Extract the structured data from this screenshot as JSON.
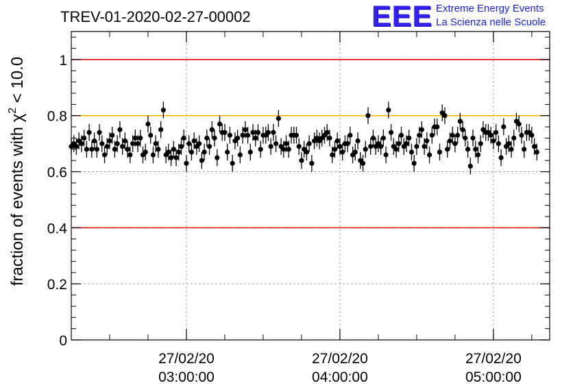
{
  "header": {
    "title": "TREV-01-2020-02-27-00002",
    "logo_mark": "EEE",
    "logo_line1": "Extreme Energy Events",
    "logo_line2": "La Scienza nelle Scuole"
  },
  "colors": {
    "logo": "#2a1fe6",
    "ref_red": "#e00000",
    "ref_orange": "#ffb000",
    "points": "#000000",
    "grid": "#a0a0a0"
  },
  "chart_data": {
    "type": "scatter",
    "title": "TREV-01-2020-02-27-00002",
    "xlabel": "",
    "ylabel": "fraction of events with χ² < 10.0",
    "ylabel_parts": {
      "pre": "fraction of events with ",
      "sym": "χ",
      "sup": "2",
      "post": " < 10.0"
    },
    "x_axis": {
      "type": "time",
      "start": "27/02/20 02:15:00",
      "end": "27/02/20 05:22:00"
    },
    "ylim": [
      0,
      1.1
    ],
    "yticks": [
      0,
      0.2,
      0.4,
      0.6,
      0.8,
      1
    ],
    "ytick_labels": [
      "0",
      "0.2",
      "0.4",
      "0.6",
      "0.8",
      "1"
    ],
    "xticks": [
      {
        "time": "27/02/20 03:00:00",
        "date": "27/02/20",
        "clock": "03:00:00"
      },
      {
        "time": "27/02/20 04:00:00",
        "date": "27/02/20",
        "clock": "04:00:00"
      },
      {
        "time": "27/02/20 05:00:00",
        "date": "27/02/20",
        "clock": "05:00:00"
      }
    ],
    "grid": true,
    "reference_lines": [
      {
        "y": 1.0,
        "color": "#e00000"
      },
      {
        "y": 0.8,
        "color": "#ffb000"
      },
      {
        "y": 0.4,
        "color": "#e00000"
      }
    ],
    "series": [
      {
        "error": 0.03,
        "points": [
          {
            "x": "27/02/20 02:15:00",
            "y": 0.69
          },
          {
            "x": "27/02/20 02:16:00",
            "y": 0.7
          },
          {
            "x": "27/02/20 02:17:00",
            "y": 0.69
          },
          {
            "x": "27/02/20 02:18:00",
            "y": 0.71
          },
          {
            "x": "27/02/20 02:19:00",
            "y": 0.7
          },
          {
            "x": "27/02/20 02:20:00",
            "y": 0.72
          },
          {
            "x": "27/02/20 02:21:00",
            "y": 0.68
          },
          {
            "x": "27/02/20 02:22:00",
            "y": 0.74
          },
          {
            "x": "27/02/20 02:23:00",
            "y": 0.68
          },
          {
            "x": "27/02/20 02:24:00",
            "y": 0.71
          },
          {
            "x": "27/02/20 02:25:00",
            "y": 0.68
          },
          {
            "x": "27/02/20 02:26:00",
            "y": 0.74
          },
          {
            "x": "27/02/20 02:27:00",
            "y": 0.7
          },
          {
            "x": "27/02/20 02:28:00",
            "y": 0.66
          },
          {
            "x": "27/02/20 02:29:00",
            "y": 0.69
          },
          {
            "x": "27/02/20 02:30:00",
            "y": 0.71
          },
          {
            "x": "27/02/20 02:31:00",
            "y": 0.73
          },
          {
            "x": "27/02/20 02:32:00",
            "y": 0.68
          },
          {
            "x": "27/02/20 02:33:00",
            "y": 0.7
          },
          {
            "x": "27/02/20 02:34:00",
            "y": 0.75
          },
          {
            "x": "27/02/20 02:35:00",
            "y": 0.69
          },
          {
            "x": "27/02/20 02:36:00",
            "y": 0.71
          },
          {
            "x": "27/02/20 02:37:00",
            "y": 0.68
          },
          {
            "x": "27/02/20 02:38:00",
            "y": 0.66
          },
          {
            "x": "27/02/20 02:39:00",
            "y": 0.7
          },
          {
            "x": "27/02/20 02:40:00",
            "y": 0.72
          },
          {
            "x": "27/02/20 02:41:00",
            "y": 0.7
          },
          {
            "x": "27/02/20 02:42:00",
            "y": 0.72
          },
          {
            "x": "27/02/20 02:43:00",
            "y": 0.66
          },
          {
            "x": "27/02/20 02:44:00",
            "y": 0.67
          },
          {
            "x": "27/02/20 02:45:00",
            "y": 0.77
          },
          {
            "x": "27/02/20 02:46:00",
            "y": 0.73
          },
          {
            "x": "27/02/20 02:47:00",
            "y": 0.66
          },
          {
            "x": "27/02/20 02:48:00",
            "y": 0.7
          },
          {
            "x": "27/02/20 02:49:00",
            "y": 0.68
          },
          {
            "x": "27/02/20 02:50:00",
            "y": 0.75
          },
          {
            "x": "27/02/20 02:51:00",
            "y": 0.82
          },
          {
            "x": "27/02/20 02:52:00",
            "y": 0.66
          },
          {
            "x": "27/02/20 02:53:00",
            "y": 0.67
          },
          {
            "x": "27/02/20 02:54:00",
            "y": 0.65
          },
          {
            "x": "27/02/20 02:55:00",
            "y": 0.68
          },
          {
            "x": "27/02/20 02:56:00",
            "y": 0.65
          },
          {
            "x": "27/02/20 02:57:00",
            "y": 0.67
          },
          {
            "x": "27/02/20 02:58:00",
            "y": 0.69
          },
          {
            "x": "27/02/20 02:59:00",
            "y": 0.72
          },
          {
            "x": "27/02/20 03:00:00",
            "y": 0.63
          },
          {
            "x": "27/02/20 03:01:00",
            "y": 0.7
          },
          {
            "x": "27/02/20 03:02:00",
            "y": 0.67
          },
          {
            "x": "27/02/20 03:03:00",
            "y": 0.71
          },
          {
            "x": "27/02/20 03:04:00",
            "y": 0.69
          },
          {
            "x": "27/02/20 03:05:00",
            "y": 0.7
          },
          {
            "x": "27/02/20 03:06:00",
            "y": 0.64
          },
          {
            "x": "27/02/20 03:07:00",
            "y": 0.67
          },
          {
            "x": "27/02/20 03:08:00",
            "y": 0.72
          },
          {
            "x": "27/02/20 03:09:00",
            "y": 0.69
          },
          {
            "x": "27/02/20 03:10:00",
            "y": 0.75
          },
          {
            "x": "27/02/20 03:11:00",
            "y": 0.72
          },
          {
            "x": "27/02/20 03:12:00",
            "y": 0.65
          },
          {
            "x": "27/02/20 03:13:00",
            "y": 0.77
          },
          {
            "x": "27/02/20 03:14:00",
            "y": 0.74
          },
          {
            "x": "27/02/20 03:15:00",
            "y": 0.74
          },
          {
            "x": "27/02/20 03:16:00",
            "y": 0.67
          },
          {
            "x": "27/02/20 03:17:00",
            "y": 0.73
          },
          {
            "x": "27/02/20 03:18:00",
            "y": 0.63
          },
          {
            "x": "27/02/20 03:19:00",
            "y": 0.71
          },
          {
            "x": "27/02/20 03:20:00",
            "y": 0.72
          },
          {
            "x": "27/02/20 03:21:00",
            "y": 0.66
          },
          {
            "x": "27/02/20 03:22:00",
            "y": 0.73
          },
          {
            "x": "27/02/20 03:23:00",
            "y": 0.75
          },
          {
            "x": "27/02/20 03:24:00",
            "y": 0.73
          },
          {
            "x": "27/02/20 03:25:00",
            "y": 0.67
          },
          {
            "x": "27/02/20 03:26:00",
            "y": 0.74
          },
          {
            "x": "27/02/20 03:27:00",
            "y": 0.72
          },
          {
            "x": "27/02/20 03:28:00",
            "y": 0.74
          },
          {
            "x": "27/02/20 03:29:00",
            "y": 0.68
          },
          {
            "x": "27/02/20 03:30:00",
            "y": 0.73
          },
          {
            "x": "27/02/20 03:31:00",
            "y": 0.73
          },
          {
            "x": "27/02/20 03:32:00",
            "y": 0.74
          },
          {
            "x": "27/02/20 03:33:00",
            "y": 0.69
          },
          {
            "x": "27/02/20 03:34:00",
            "y": 0.74
          },
          {
            "x": "27/02/20 03:35:00",
            "y": 0.7
          },
          {
            "x": "27/02/20 03:36:00",
            "y": 0.79
          },
          {
            "x": "27/02/20 03:37:00",
            "y": 0.69
          },
          {
            "x": "27/02/20 03:38:00",
            "y": 0.68
          },
          {
            "x": "27/02/20 03:39:00",
            "y": 0.7
          },
          {
            "x": "27/02/20 03:40:00",
            "y": 0.68
          },
          {
            "x": "27/02/20 03:41:00",
            "y": 0.73
          },
          {
            "x": "27/02/20 03:42:00",
            "y": 0.73
          },
          {
            "x": "27/02/20 03:43:00",
            "y": 0.73
          },
          {
            "x": "27/02/20 03:44:00",
            "y": 0.69
          },
          {
            "x": "27/02/20 03:45:00",
            "y": 0.64
          },
          {
            "x": "27/02/20 03:46:00",
            "y": 0.68
          },
          {
            "x": "27/02/20 03:47:00",
            "y": 0.67
          },
          {
            "x": "27/02/20 03:48:00",
            "y": 0.7
          },
          {
            "x": "27/02/20 03:49:00",
            "y": 0.63
          },
          {
            "x": "27/02/20 03:50:00",
            "y": 0.71
          },
          {
            "x": "27/02/20 03:51:00",
            "y": 0.72
          },
          {
            "x": "27/02/20 03:52:00",
            "y": 0.71
          },
          {
            "x": "27/02/20 03:53:00",
            "y": 0.72
          },
          {
            "x": "27/02/20 03:54:00",
            "y": 0.73
          },
          {
            "x": "27/02/20 03:55:00",
            "y": 0.74
          },
          {
            "x": "27/02/20 03:56:00",
            "y": 0.72
          },
          {
            "x": "27/02/20 03:57:00",
            "y": 0.66
          },
          {
            "x": "27/02/20 03:58:00",
            "y": 0.68
          },
          {
            "x": "27/02/20 03:59:00",
            "y": 0.71
          },
          {
            "x": "27/02/20 04:00:00",
            "y": 0.69
          },
          {
            "x": "27/02/20 04:01:00",
            "y": 0.67
          },
          {
            "x": "27/02/20 04:02:00",
            "y": 0.7
          },
          {
            "x": "27/02/20 04:03:00",
            "y": 0.7
          },
          {
            "x": "27/02/20 04:04:00",
            "y": 0.73
          },
          {
            "x": "27/02/20 04:05:00",
            "y": 0.66
          },
          {
            "x": "27/02/20 04:06:00",
            "y": 0.67
          },
          {
            "x": "27/02/20 04:07:00",
            "y": 0.71
          },
          {
            "x": "27/02/20 04:08:00",
            "y": 0.64
          },
          {
            "x": "27/02/20 04:09:00",
            "y": 0.63
          },
          {
            "x": "27/02/20 04:10:00",
            "y": 0.68
          },
          {
            "x": "27/02/20 04:11:00",
            "y": 0.8
          },
          {
            "x": "27/02/20 04:12:00",
            "y": 0.69
          },
          {
            "x": "27/02/20 04:13:00",
            "y": 0.72
          },
          {
            "x": "27/02/20 04:14:00",
            "y": 0.69
          },
          {
            "x": "27/02/20 04:15:00",
            "y": 0.7
          },
          {
            "x": "27/02/20 04:16:00",
            "y": 0.69
          },
          {
            "x": "27/02/20 04:17:00",
            "y": 0.72
          },
          {
            "x": "27/02/20 04:18:00",
            "y": 0.66
          },
          {
            "x": "27/02/20 04:19:00",
            "y": 0.82
          },
          {
            "x": "27/02/20 04:20:00",
            "y": 0.74
          },
          {
            "x": "27/02/20 04:21:00",
            "y": 0.69
          },
          {
            "x": "27/02/20 04:22:00",
            "y": 0.68
          },
          {
            "x": "27/02/20 04:23:00",
            "y": 0.7
          },
          {
            "x": "27/02/20 04:24:00",
            "y": 0.73
          },
          {
            "x": "27/02/20 04:25:00",
            "y": 0.69
          },
          {
            "x": "27/02/20 04:26:00",
            "y": 0.7
          },
          {
            "x": "27/02/20 04:27:00",
            "y": 0.72
          },
          {
            "x": "27/02/20 04:28:00",
            "y": 0.67
          },
          {
            "x": "27/02/20 04:29:00",
            "y": 0.63
          },
          {
            "x": "27/02/20 04:30:00",
            "y": 0.69
          },
          {
            "x": "27/02/20 04:31:00",
            "y": 0.73
          },
          {
            "x": "27/02/20 04:32:00",
            "y": 0.75
          },
          {
            "x": "27/02/20 04:33:00",
            "y": 0.69
          },
          {
            "x": "27/02/20 04:34:00",
            "y": 0.71
          },
          {
            "x": "27/02/20 04:35:00",
            "y": 0.66
          },
          {
            "x": "27/02/20 04:36:00",
            "y": 0.73
          },
          {
            "x": "27/02/20 04:37:00",
            "y": 0.76
          },
          {
            "x": "27/02/20 04:38:00",
            "y": 0.76
          },
          {
            "x": "27/02/20 04:39:00",
            "y": 0.67
          },
          {
            "x": "27/02/20 04:40:00",
            "y": 0.81
          },
          {
            "x": "27/02/20 04:41:00",
            "y": 0.8
          },
          {
            "x": "27/02/20 04:42:00",
            "y": 0.68
          },
          {
            "x": "27/02/20 04:43:00",
            "y": 0.71
          },
          {
            "x": "27/02/20 04:44:00",
            "y": 0.73
          },
          {
            "x": "27/02/20 04:45:00",
            "y": 0.7
          },
          {
            "x": "27/02/20 04:46:00",
            "y": 0.73
          },
          {
            "x": "27/02/20 04:47:00",
            "y": 0.78
          },
          {
            "x": "27/02/20 04:48:00",
            "y": 0.75
          },
          {
            "x": "27/02/20 04:49:00",
            "y": 0.72
          },
          {
            "x": "27/02/20 04:50:00",
            "y": 0.68
          },
          {
            "x": "27/02/20 04:51:00",
            "y": 0.62
          },
          {
            "x": "27/02/20 04:52:00",
            "y": 0.72
          },
          {
            "x": "27/02/20 04:53:00",
            "y": 0.68
          },
          {
            "x": "27/02/20 04:54:00",
            "y": 0.66
          },
          {
            "x": "27/02/20 04:55:00",
            "y": 0.7
          },
          {
            "x": "27/02/20 04:56:00",
            "y": 0.75
          },
          {
            "x": "27/02/20 04:57:00",
            "y": 0.74
          },
          {
            "x": "27/02/20 04:58:00",
            "y": 0.74
          },
          {
            "x": "27/02/20 04:59:00",
            "y": 0.73
          },
          {
            "x": "27/02/20 05:00:00",
            "y": 0.71
          },
          {
            "x": "27/02/20 05:01:00",
            "y": 0.74
          },
          {
            "x": "27/02/20 05:02:00",
            "y": 0.7
          },
          {
            "x": "27/02/20 05:03:00",
            "y": 0.65
          },
          {
            "x": "27/02/20 05:04:00",
            "y": 0.76
          },
          {
            "x": "27/02/20 05:05:00",
            "y": 0.69
          },
          {
            "x": "27/02/20 05:06:00",
            "y": 0.7
          },
          {
            "x": "27/02/20 05:07:00",
            "y": 0.68
          },
          {
            "x": "27/02/20 05:08:00",
            "y": 0.72
          },
          {
            "x": "27/02/20 05:09:00",
            "y": 0.78
          },
          {
            "x": "27/02/20 05:10:00",
            "y": 0.77
          },
          {
            "x": "27/02/20 05:11:00",
            "y": 0.73
          },
          {
            "x": "27/02/20 05:12:00",
            "y": 0.68
          },
          {
            "x": "27/02/20 05:13:00",
            "y": 0.74
          },
          {
            "x": "27/02/20 05:14:00",
            "y": 0.74
          },
          {
            "x": "27/02/20 05:15:00",
            "y": 0.73
          },
          {
            "x": "27/02/20 05:16:00",
            "y": 0.69
          },
          {
            "x": "27/02/20 05:17:00",
            "y": 0.67
          }
        ]
      }
    ]
  }
}
